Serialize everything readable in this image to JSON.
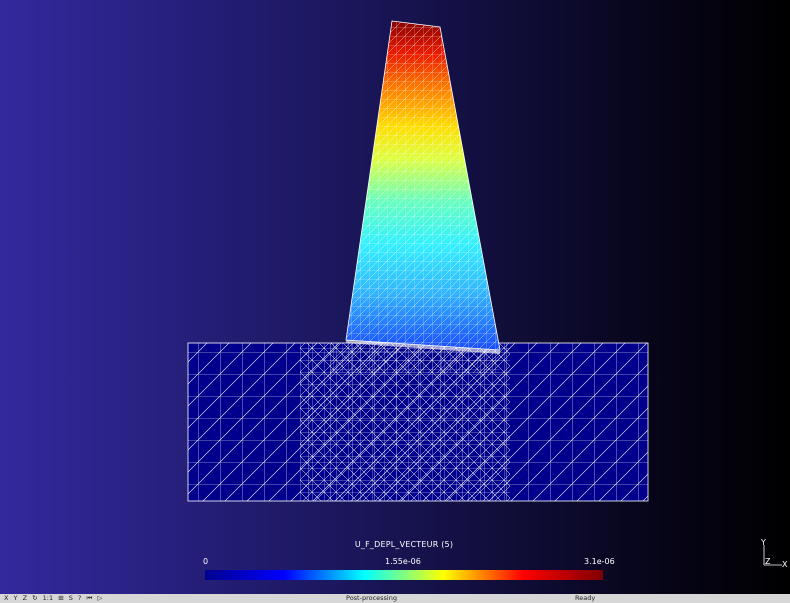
{
  "colorbar": {
    "title": "U_F_DEPL_VECTEUR (5)",
    "min_label": "0",
    "mid_label": "1.55e-06",
    "max_label": "3.1e-06",
    "colors": [
      "#00008f",
      "#0000ff",
      "#00ffff",
      "#ffff00",
      "#ff0000",
      "#800000"
    ]
  },
  "axes": {
    "y_label": "Y",
    "z_label": "Z",
    "x_label": "X"
  },
  "statusbar": {
    "buttons": [
      "X",
      "Y",
      "Z",
      "↻",
      "1:1",
      "⊞",
      "S",
      "?",
      "⏮",
      "▷"
    ],
    "mode": "Post-processing",
    "status": "Ready"
  },
  "colors": {
    "background_left": "#33299e",
    "background_right": "#000000",
    "mesh_lines": "#ffffff",
    "base_fill": "#000088"
  }
}
